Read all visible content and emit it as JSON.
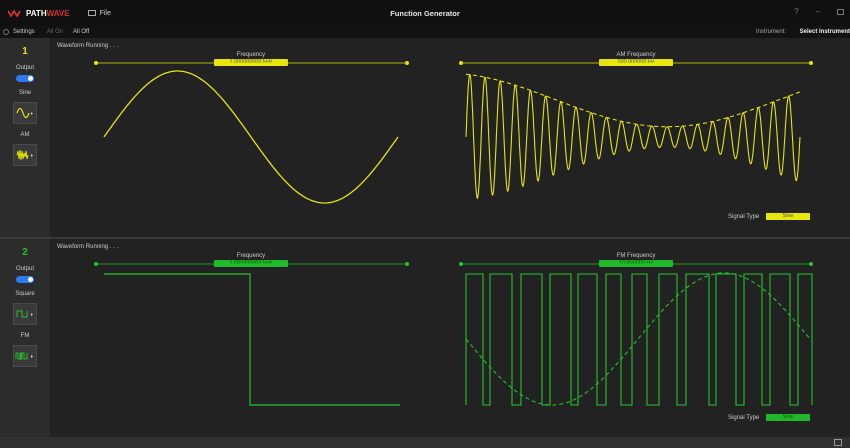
{
  "app": {
    "logo_path": "PATH",
    "logo_wave": "WAVE",
    "file_label": "File",
    "window_title": "Function Generator",
    "help_glyph": "?",
    "minimize_glyph": "–"
  },
  "toolbar": {
    "settings_label": "Settings",
    "all_on_label": "All On",
    "all_off_label": "All Off",
    "instrument_label": "Instrument:",
    "instrument_value": "Select Instrument"
  },
  "channels": [
    {
      "number": "1",
      "output_label": "Output",
      "output_on": true,
      "waveform_label": "Sine",
      "mod_label": "AM",
      "status": "Waveform Running . . .",
      "freq_label": "Frequency",
      "freq_value": "1.000000000 kHz",
      "mod_freq_label": "AM Frequency",
      "mod_freq_value": "100.000000 Hz",
      "signal_type_label": "Signal Type",
      "signal_type_value": "Sine",
      "color": "#e4e60b"
    },
    {
      "number": "2",
      "output_label": "Output",
      "output_on": true,
      "waveform_label": "Square",
      "mod_label": "FM",
      "status": "Waveform Running . . .",
      "freq_label": "Frequency",
      "freq_value": "1.000000000 kHz",
      "mod_freq_label": "FM Frequency",
      "mod_freq_value": "10.000000 Hz",
      "signal_type_label": "Signal Type",
      "signal_type_value": "Sine",
      "color": "#22c42a"
    }
  ]
}
